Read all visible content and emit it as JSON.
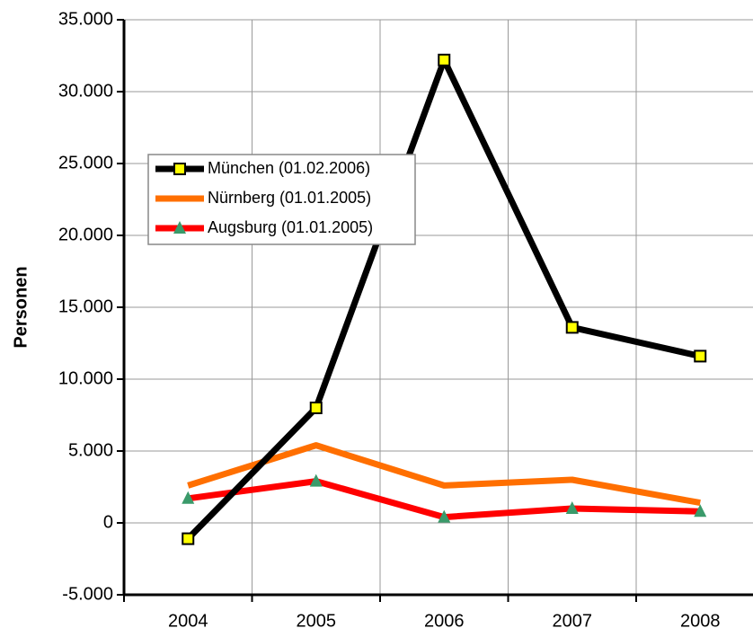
{
  "chart_data": {
    "type": "line",
    "y_label": "Personen",
    "categories": [
      "2004",
      "2005",
      "2006",
      "2007",
      "2008"
    ],
    "series": [
      {
        "name": "München (01.02.2006)",
        "color": "#000000",
        "marker": "square",
        "marker_color": "#ffff00",
        "values": [
          -1100,
          8000,
          32200,
          13600,
          11600
        ]
      },
      {
        "name": "Nürnberg (01.01.2005)",
        "color": "#ff6f00",
        "marker": null,
        "values": [
          2600,
          5400,
          2600,
          3000,
          1400
        ]
      },
      {
        "name": "Augsburg (01.01.2005)",
        "color": "#ff0000",
        "marker": "triangle",
        "marker_color": "#3a9a6a",
        "values": [
          1700,
          2900,
          400,
          1000,
          800
        ]
      }
    ],
    "ylim": [
      -5000,
      35000
    ],
    "yticks": [
      {
        "value": -5000,
        "label": "-5.000"
      },
      0,
      {
        "value": 5000,
        "label": "5.000"
      },
      {
        "value": 10000,
        "label": "10.000"
      },
      {
        "value": 15000,
        "label": "15.000"
      },
      {
        "value": 20000,
        "label": "20.000"
      },
      {
        "value": 25000,
        "label": "25.000"
      },
      {
        "value": 30000,
        "label": "30.000"
      },
      {
        "value": 35000,
        "label": "35.000"
      }
    ],
    "grid": true,
    "legend": "upper left"
  }
}
